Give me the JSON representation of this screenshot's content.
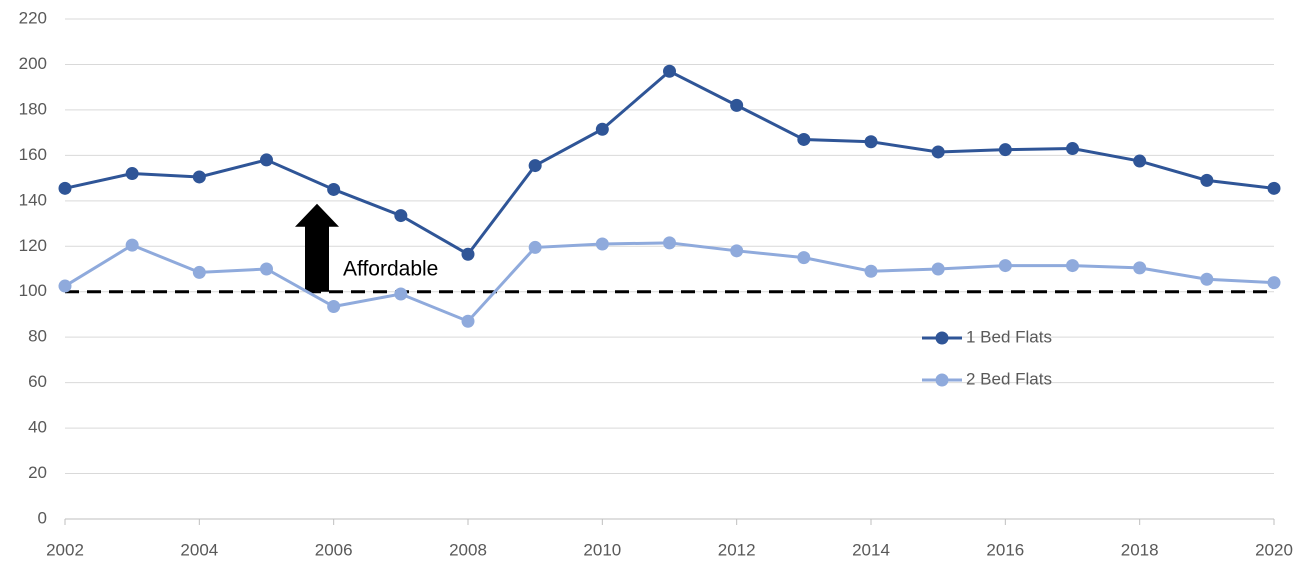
{
  "chart_data": {
    "type": "line",
    "x": [
      2002,
      2003,
      2004,
      2005,
      2006,
      2007,
      2008,
      2009,
      2010,
      2011,
      2012,
      2013,
      2014,
      2015,
      2016,
      2017,
      2018,
      2019,
      2020
    ],
    "series": [
      {
        "name": "1 Bed Flats",
        "color": "#2f5597",
        "values": [
          145.5,
          152,
          150.5,
          158,
          145,
          133.5,
          116.5,
          155.5,
          171.5,
          197,
          182,
          167,
          166,
          161.5,
          162.5,
          163,
          157.5,
          149,
          145.5
        ]
      },
      {
        "name": "2 Bed Flats",
        "color": "#8faadc",
        "values": [
          102.5,
          120.5,
          108.5,
          110,
          93.5,
          99,
          87,
          119.5,
          121,
          121.5,
          118,
          115,
          109,
          110,
          111.5,
          111.5,
          110.5,
          105.5,
          104
        ]
      }
    ],
    "xlim": [
      2002,
      2020
    ],
    "xticks": [
      2002,
      2004,
      2006,
      2008,
      2010,
      2012,
      2014,
      2016,
      2018,
      2020
    ],
    "ylim": [
      0,
      220
    ],
    "yticks": [
      0,
      20,
      40,
      60,
      80,
      100,
      120,
      140,
      160,
      180,
      200,
      220
    ],
    "grid": true,
    "legend": "right",
    "reference_line": 100,
    "annotation": "Affordable"
  }
}
